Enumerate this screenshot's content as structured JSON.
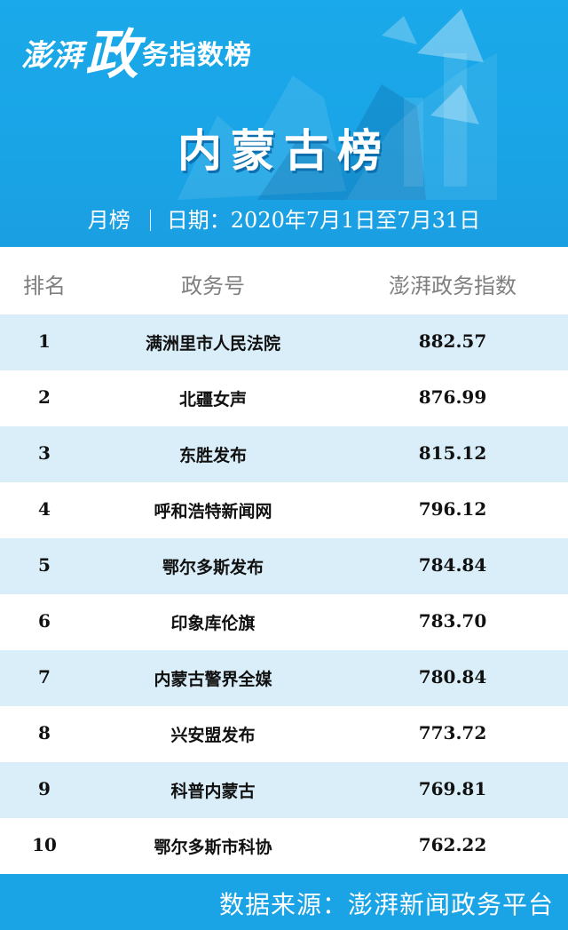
{
  "header": {
    "brand_part1": "澎湃",
    "brand_part2": "政",
    "brand_part3": "务指数榜",
    "region_title": "内蒙古榜",
    "period_type": "月榜",
    "period_date": "日期：2020年7月1日至7月31日"
  },
  "table": {
    "columns": [
      "排名",
      "政务号",
      "澎湃政务指数"
    ],
    "rows": [
      {
        "rank": "1",
        "name": "满洲里市人民法院",
        "score": "882.57"
      },
      {
        "rank": "2",
        "name": "北疆女声",
        "score": "876.99"
      },
      {
        "rank": "3",
        "name": "东胜发布",
        "score": "815.12"
      },
      {
        "rank": "4",
        "name": "呼和浩特新闻网",
        "score": "796.12"
      },
      {
        "rank": "5",
        "name": "鄂尔多斯发布",
        "score": "784.84"
      },
      {
        "rank": "6",
        "name": "印象库伦旗",
        "score": "783.70"
      },
      {
        "rank": "7",
        "name": "内蒙古警界全媒",
        "score": "780.84"
      },
      {
        "rank": "8",
        "name": "兴安盟发布",
        "score": "773.72"
      },
      {
        "rank": "9",
        "name": "科普内蒙古",
        "score": "769.81"
      },
      {
        "rank": "10",
        "name": "鄂尔多斯市科协",
        "score": "762.22"
      }
    ]
  },
  "footer": {
    "source": "数据来源：澎湃新闻政务平台"
  },
  "colors": {
    "banner_blue": "#1aa9ea",
    "row_stripe": "#d9eef8",
    "header_text": "#7f7f7f"
  }
}
